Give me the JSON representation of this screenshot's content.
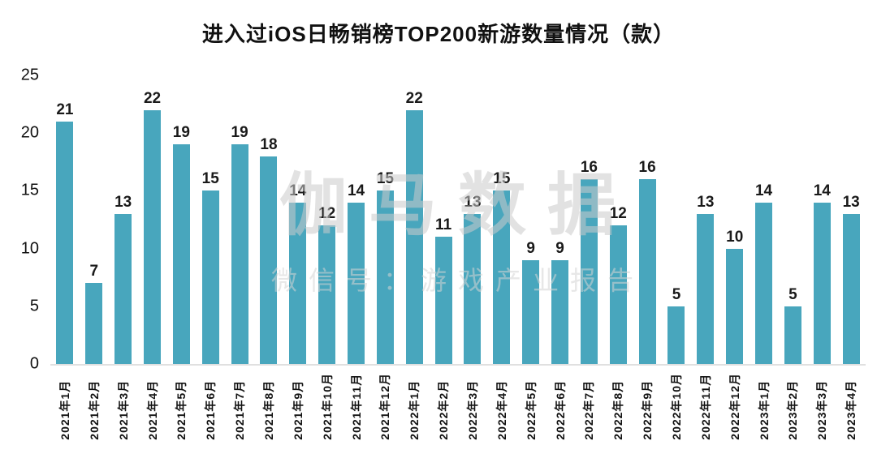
{
  "title": "进入过iOS日畅销榜TOP200新游数量情况（款）",
  "watermark": {
    "line1": "伽马数据",
    "line2": "微信号：游戏产业报告"
  },
  "colors": {
    "bar": "#48a6bd",
    "title_text": "#111111",
    "value_text": "#1a1a1a",
    "watermark_text": "#cccccc"
  },
  "chart_data": {
    "type": "bar",
    "title": "进入过iOS日畅销榜TOP200新游数量情况（款）",
    "categories": [
      "2021年1月",
      "2021年2月",
      "2021年3月",
      "2021年4月",
      "2021年5月",
      "2021年6月",
      "2021年7月",
      "2021年8月",
      "2021年9月",
      "2021年10月",
      "2021年11月",
      "2021年12月",
      "2022年1月",
      "2022年2月",
      "2022年3月",
      "2022年4月",
      "2022年5月",
      "2022年6月",
      "2022年7月",
      "2022年8月",
      "2022年9月",
      "2022年10月",
      "2022年11月",
      "2022年12月",
      "2023年1月",
      "2023年2月",
      "2023年3月",
      "2023年4月"
    ],
    "values": [
      21,
      7,
      13,
      22,
      19,
      15,
      19,
      18,
      14,
      12,
      14,
      15,
      22,
      11,
      13,
      15,
      9,
      9,
      16,
      12,
      16,
      5,
      13,
      10,
      14,
      5,
      14,
      13
    ],
    "xlabel": "",
    "ylabel": "",
    "ylim": [
      0,
      25
    ],
    "yticks": [
      0,
      5,
      10,
      15,
      20,
      25
    ],
    "grid": false,
    "legend": false,
    "data_labels": true,
    "bar_color": "#48a6bd"
  }
}
